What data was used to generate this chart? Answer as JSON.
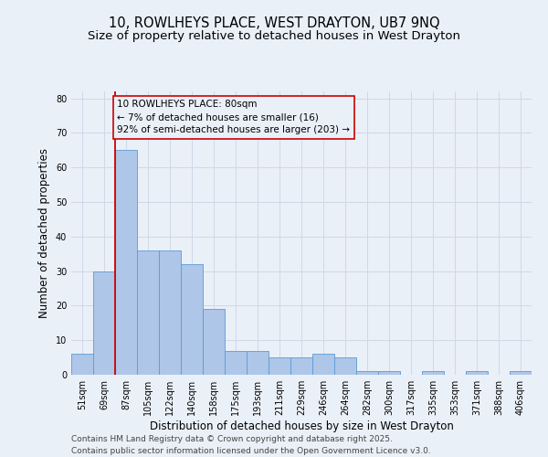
{
  "title_line1": "10, ROWLHEYS PLACE, WEST DRAYTON, UB7 9NQ",
  "title_line2": "Size of property relative to detached houses in West Drayton",
  "xlabel": "Distribution of detached houses by size in West Drayton",
  "ylabel": "Number of detached properties",
  "categories": [
    "51sqm",
    "69sqm",
    "87sqm",
    "105sqm",
    "122sqm",
    "140sqm",
    "158sqm",
    "175sqm",
    "193sqm",
    "211sqm",
    "229sqm",
    "246sqm",
    "264sqm",
    "282sqm",
    "300sqm",
    "317sqm",
    "335sqm",
    "353sqm",
    "371sqm",
    "388sqm",
    "406sqm"
  ],
  "values": [
    6,
    30,
    65,
    36,
    36,
    32,
    19,
    7,
    7,
    5,
    5,
    6,
    5,
    1,
    1,
    0,
    1,
    0,
    1,
    0,
    1
  ],
  "bar_color": "#aec6e8",
  "bar_edge_color": "#5b9bd5",
  "grid_color": "#d0d8e8",
  "background_color": "#eaf0f8",
  "vline_color": "#cc0000",
  "annotation_text": "10 ROWLHEYS PLACE: 80sqm\n← 7% of detached houses are smaller (16)\n92% of semi-detached houses are larger (203) →",
  "annotation_box_color": "#cc0000",
  "ylim": [
    0,
    82
  ],
  "yticks": [
    0,
    10,
    20,
    30,
    40,
    50,
    60,
    70,
    80
  ],
  "footer_line1": "Contains HM Land Registry data © Crown copyright and database right 2025.",
  "footer_line2": "Contains public sector information licensed under the Open Government Licence v3.0.",
  "title_fontsize": 10.5,
  "subtitle_fontsize": 9.5,
  "axis_label_fontsize": 8.5,
  "tick_fontsize": 7,
  "annotation_fontsize": 7.5,
  "footer_fontsize": 6.5
}
